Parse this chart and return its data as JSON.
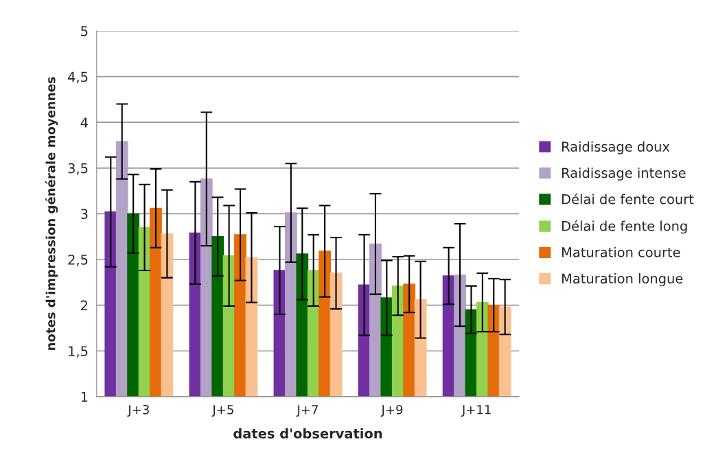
{
  "chart_data": {
    "type": "bar",
    "xlabel": "dates d'observation",
    "ylabel": "notes d'impression générale moyennes",
    "categories": [
      "J+3",
      "J+5",
      "J+7",
      "J+9",
      "J+11"
    ],
    "series": [
      {
        "name": "Raidissage doux",
        "color": "#7030a0",
        "values": [
          3.02,
          2.79,
          2.38,
          2.22,
          2.32
        ],
        "errors": [
          0.6,
          0.56,
          0.48,
          0.55,
          0.31
        ]
      },
      {
        "name": "Raidissage intense",
        "color": "#b3a2c7",
        "values": [
          3.79,
          3.38,
          3.01,
          2.67,
          2.33
        ],
        "errors": [
          0.41,
          0.73,
          0.54,
          0.55,
          0.56
        ]
      },
      {
        "name": "Délai de fente court",
        "color": "#006600",
        "values": [
          3.0,
          2.75,
          2.56,
          2.08,
          1.95
        ],
        "errors": [
          0.43,
          0.43,
          0.5,
          0.41,
          0.26
        ]
      },
      {
        "name": "Délai de fente long",
        "color": "#92d050",
        "values": [
          2.85,
          2.54,
          2.38,
          2.21,
          2.03
        ],
        "errors": [
          0.47,
          0.55,
          0.39,
          0.32,
          0.32
        ]
      },
      {
        "name": "Maturation courte",
        "color": "#e46c0a",
        "values": [
          3.06,
          2.77,
          2.59,
          2.23,
          2.0
        ],
        "errors": [
          0.43,
          0.5,
          0.5,
          0.31,
          0.29
        ]
      },
      {
        "name": "Maturation longue",
        "color": "#fac090",
        "values": [
          2.78,
          2.52,
          2.35,
          2.06,
          1.98
        ],
        "errors": [
          0.48,
          0.49,
          0.39,
          0.42,
          0.3
        ]
      }
    ],
    "ylim": [
      1,
      5
    ],
    "yticks": [
      1,
      {
        "value": 1.5,
        "label": "1,5"
      },
      2,
      {
        "value": 2.5,
        "label": "2,5"
      },
      3,
      {
        "value": 3.5,
        "label": "3,5"
      },
      4,
      {
        "value": 4.5,
        "label": "4,5"
      },
      5
    ],
    "grid": "y",
    "legend": "right"
  }
}
